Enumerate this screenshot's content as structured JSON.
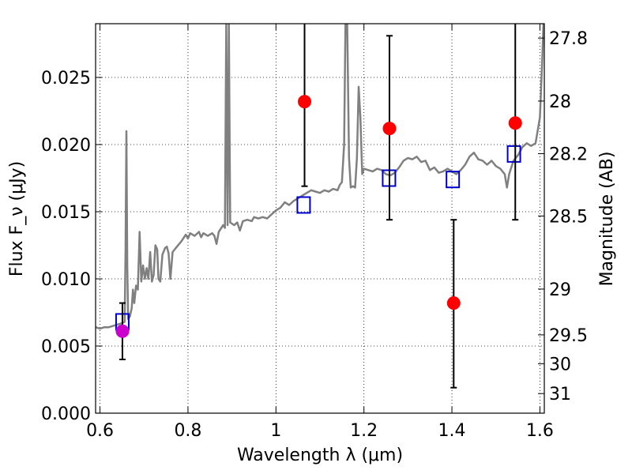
{
  "chart_data": {
    "type": "scatter",
    "xlabel": "Wavelength λ (μm)",
    "ylabel": "Flux F_ν (μJy)",
    "ylabel_right": "Magnitude (AB)",
    "xlim": [
      0.59,
      1.61
    ],
    "ylim": [
      0.0,
      0.029
    ],
    "grid": true,
    "x_ticks": [
      {
        "value": 0.6,
        "label": "0.6"
      },
      {
        "value": 0.8,
        "label": "0.8"
      },
      {
        "value": 1.0,
        "label": "1"
      },
      {
        "value": 1.2,
        "label": "1.2"
      },
      {
        "value": 1.4,
        "label": "1.4"
      },
      {
        "value": 1.6,
        "label": "1.6"
      }
    ],
    "y_ticks": [
      {
        "value": 0.0,
        "label": "0.000"
      },
      {
        "value": 0.005,
        "label": "0.005"
      },
      {
        "value": 0.01,
        "label": "0.010"
      },
      {
        "value": 0.015,
        "label": "0.015"
      },
      {
        "value": 0.02,
        "label": "0.020"
      },
      {
        "value": 0.025,
        "label": "0.025"
      }
    ],
    "mag_ticks": [
      {
        "value": 0.02793,
        "label": "27.8"
      },
      {
        "value": 0.02324,
        "label": "28"
      },
      {
        "value": 0.01932,
        "label": "28.2"
      },
      {
        "value": 0.01468,
        "label": "28.5"
      },
      {
        "value": 0.00924,
        "label": "29"
      },
      {
        "value": 0.00583,
        "label": "29.5"
      },
      {
        "value": 0.00368,
        "label": "30"
      },
      {
        "value": 0.00146,
        "label": "31"
      }
    ],
    "series": [
      {
        "kind": "line",
        "color": "#808080",
        "points": [
          [
            0.59,
            0.0064
          ],
          [
            0.6,
            0.0063
          ],
          [
            0.61,
            0.0064
          ],
          [
            0.62,
            0.0064
          ],
          [
            0.64,
            0.0066
          ],
          [
            0.65,
            0.0067
          ],
          [
            0.656,
            0.0068
          ],
          [
            0.658,
            0.012
          ],
          [
            0.66,
            0.021
          ],
          [
            0.662,
            0.011
          ],
          [
            0.664,
            0.007
          ],
          [
            0.668,
            0.0072
          ],
          [
            0.672,
            0.0078
          ],
          [
            0.675,
            0.0092
          ],
          [
            0.678,
            0.0082
          ],
          [
            0.682,
            0.0095
          ],
          [
            0.686,
            0.0092
          ],
          [
            0.69,
            0.0135
          ],
          [
            0.694,
            0.0098
          ],
          [
            0.698,
            0.011
          ],
          [
            0.702,
            0.01
          ],
          [
            0.706,
            0.0108
          ],
          [
            0.71,
            0.01
          ],
          [
            0.714,
            0.012
          ],
          [
            0.718,
            0.0098
          ],
          [
            0.722,
            0.0103
          ],
          [
            0.726,
            0.0125
          ],
          [
            0.73,
            0.0122
          ],
          [
            0.733,
            0.01
          ],
          [
            0.737,
            0.0098
          ],
          [
            0.742,
            0.0118
          ],
          [
            0.748,
            0.0123
          ],
          [
            0.752,
            0.0124
          ],
          [
            0.756,
            0.0119
          ],
          [
            0.76,
            0.01
          ],
          [
            0.765,
            0.012
          ],
          [
            0.775,
            0.0124
          ],
          [
            0.785,
            0.0128
          ],
          [
            0.795,
            0.0133
          ],
          [
            0.8,
            0.013
          ],
          [
            0.805,
            0.0134
          ],
          [
            0.815,
            0.0132
          ],
          [
            0.825,
            0.0135
          ],
          [
            0.83,
            0.0131
          ],
          [
            0.835,
            0.0134
          ],
          [
            0.845,
            0.0132
          ],
          [
            0.855,
            0.0134
          ],
          [
            0.86,
            0.0132
          ],
          [
            0.865,
            0.0126
          ],
          [
            0.87,
            0.0135
          ],
          [
            0.88,
            0.014
          ],
          [
            0.884,
            0.0138
          ],
          [
            0.887,
            0.029
          ],
          [
            0.89,
            0.014
          ],
          [
            0.893,
            0.029
          ],
          [
            0.896,
            0.0142
          ],
          [
            0.905,
            0.014
          ],
          [
            0.912,
            0.0142
          ],
          [
            0.918,
            0.0136
          ],
          [
            0.925,
            0.0143
          ],
          [
            0.935,
            0.0144
          ],
          [
            0.945,
            0.0143
          ],
          [
            0.95,
            0.0146
          ],
          [
            0.96,
            0.0145
          ],
          [
            0.97,
            0.0146
          ],
          [
            0.98,
            0.0145
          ],
          [
            0.99,
            0.0148
          ],
          [
            1.0,
            0.0151
          ],
          [
            1.01,
            0.0153
          ],
          [
            1.02,
            0.0157
          ],
          [
            1.03,
            0.0155
          ],
          [
            1.04,
            0.0158
          ],
          [
            1.05,
            0.016
          ],
          [
            1.06,
            0.0162
          ],
          [
            1.07,
            0.0164
          ],
          [
            1.08,
            0.0166
          ],
          [
            1.09,
            0.0165
          ],
          [
            1.1,
            0.0164
          ],
          [
            1.11,
            0.0166
          ],
          [
            1.12,
            0.0165
          ],
          [
            1.13,
            0.0167
          ],
          [
            1.14,
            0.0166
          ],
          [
            1.145,
            0.017
          ],
          [
            1.15,
            0.0172
          ],
          [
            1.155,
            0.02
          ],
          [
            1.158,
            0.029
          ],
          [
            1.162,
            0.029
          ],
          [
            1.166,
            0.019
          ],
          [
            1.17,
            0.0168
          ],
          [
            1.175,
            0.0169
          ],
          [
            1.18,
            0.0168
          ],
          [
            1.184,
            0.019
          ],
          [
            1.188,
            0.0243
          ],
          [
            1.192,
            0.022
          ],
          [
            1.196,
            0.0178
          ],
          [
            1.2,
            0.0182
          ],
          [
            1.21,
            0.0181
          ],
          [
            1.22,
            0.018
          ],
          [
            1.23,
            0.0182
          ],
          [
            1.24,
            0.0181
          ],
          [
            1.25,
            0.0178
          ],
          [
            1.26,
            0.0177
          ],
          [
            1.27,
            0.0179
          ],
          [
            1.28,
            0.0183
          ],
          [
            1.29,
            0.0188
          ],
          [
            1.3,
            0.019
          ],
          [
            1.31,
            0.0189
          ],
          [
            1.32,
            0.0191
          ],
          [
            1.33,
            0.0187
          ],
          [
            1.34,
            0.0188
          ],
          [
            1.35,
            0.0181
          ],
          [
            1.36,
            0.0183
          ],
          [
            1.37,
            0.0179
          ],
          [
            1.38,
            0.018
          ],
          [
            1.39,
            0.0182
          ],
          [
            1.4,
            0.018
          ],
          [
            1.41,
            0.0178
          ],
          [
            1.42,
            0.0181
          ],
          [
            1.43,
            0.0185
          ],
          [
            1.44,
            0.0191
          ],
          [
            1.45,
            0.0194
          ],
          [
            1.46,
            0.0189
          ],
          [
            1.47,
            0.0188
          ],
          [
            1.48,
            0.0185
          ],
          [
            1.49,
            0.0188
          ],
          [
            1.5,
            0.0184
          ],
          [
            1.51,
            0.0182
          ],
          [
            1.52,
            0.0178
          ],
          [
            1.525,
            0.0168
          ],
          [
            1.53,
            0.0178
          ],
          [
            1.54,
            0.0188
          ],
          [
            1.55,
            0.0192
          ],
          [
            1.56,
            0.0198
          ],
          [
            1.57,
            0.0201
          ],
          [
            1.58,
            0.0199
          ],
          [
            1.59,
            0.0201
          ],
          [
            1.6,
            0.022
          ],
          [
            1.605,
            0.026
          ],
          [
            1.608,
            0.029
          ]
        ]
      },
      {
        "kind": "squares",
        "color": "#0000cc",
        "points": [
          {
            "x": 0.651,
            "y": 0.0068
          },
          {
            "x": 1.063,
            "y": 0.0155
          },
          {
            "x": 1.257,
            "y": 0.0175
          },
          {
            "x": 1.402,
            "y": 0.0174
          },
          {
            "x": 1.541,
            "y": 0.0193
          }
        ]
      },
      {
        "kind": "dots",
        "color": "#ff0000",
        "points": [
          {
            "x": 1.065,
            "y": 0.0232,
            "y_low": 0.0169,
            "y_high": 0.029
          },
          {
            "x": 1.258,
            "y": 0.0212,
            "y_low": 0.0144,
            "y_high": 0.0281
          },
          {
            "x": 1.404,
            "y": 0.0082,
            "y_low": 0.0019,
            "y_high": 0.0144
          },
          {
            "x": 1.544,
            "y": 0.0216,
            "y_low": 0.0144,
            "y_high": 0.029
          }
        ]
      },
      {
        "kind": "dots",
        "color": "#cc00cc",
        "points": [
          {
            "x": 0.651,
            "y": 0.0061,
            "y_low": 0.004,
            "y_high": 0.0082
          }
        ]
      }
    ]
  }
}
